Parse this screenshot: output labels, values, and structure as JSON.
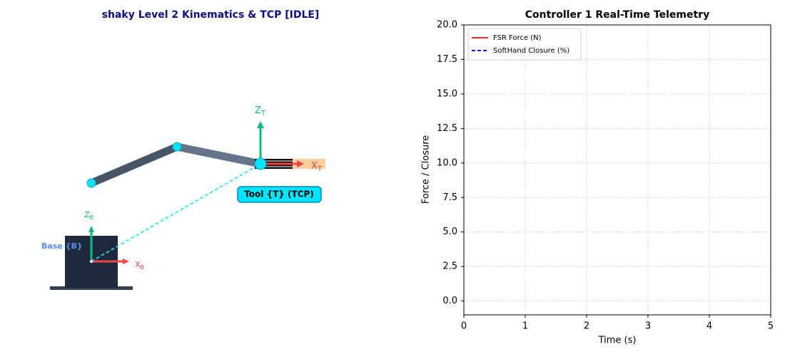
{
  "diagram": {
    "title": "shaky Level 2 Kinematics & TCP [IDLE]",
    "tool_frame": {
      "z_label": {
        "text": "Z",
        "sub": "T"
      },
      "x_label": {
        "text": "X",
        "sub": "T"
      },
      "label": "Tool {T} (TCP)"
    },
    "base_frame": {
      "z_label": {
        "text": "Z",
        "sub": "B"
      },
      "x_label": {
        "text": "X",
        "sub": "B"
      },
      "label": "Base {B}"
    }
  },
  "chart_data": {
    "type": "line",
    "title": "Controller 1 Real-Time Telemetry",
    "x_label": "Time (s)",
    "y_label": "Force / Closure",
    "x": [],
    "series": [
      {
        "name": "FSR Force (N)",
        "color": "#e8302a",
        "linestyle": "solid",
        "values": []
      },
      {
        "name": "SoftHand Closure (%)",
        "color": "#1010e0",
        "linestyle": "dashed",
        "values": []
      }
    ],
    "xlim": [
      0,
      5
    ],
    "xticks": [
      0,
      1,
      2,
      3,
      4,
      5
    ],
    "ylim": [
      -1,
      20
    ],
    "yticks": [
      {
        "value": 0,
        "label": "0.0"
      },
      2.5,
      {
        "value": 5,
        "label": "5.0"
      },
      7.5,
      {
        "value": 10,
        "label": "10.0"
      },
      12.5,
      {
        "value": 15,
        "label": "15.0"
      },
      17.5,
      {
        "value": 20,
        "label": "20.0"
      }
    ],
    "grid": true,
    "legend": "upper left"
  }
}
